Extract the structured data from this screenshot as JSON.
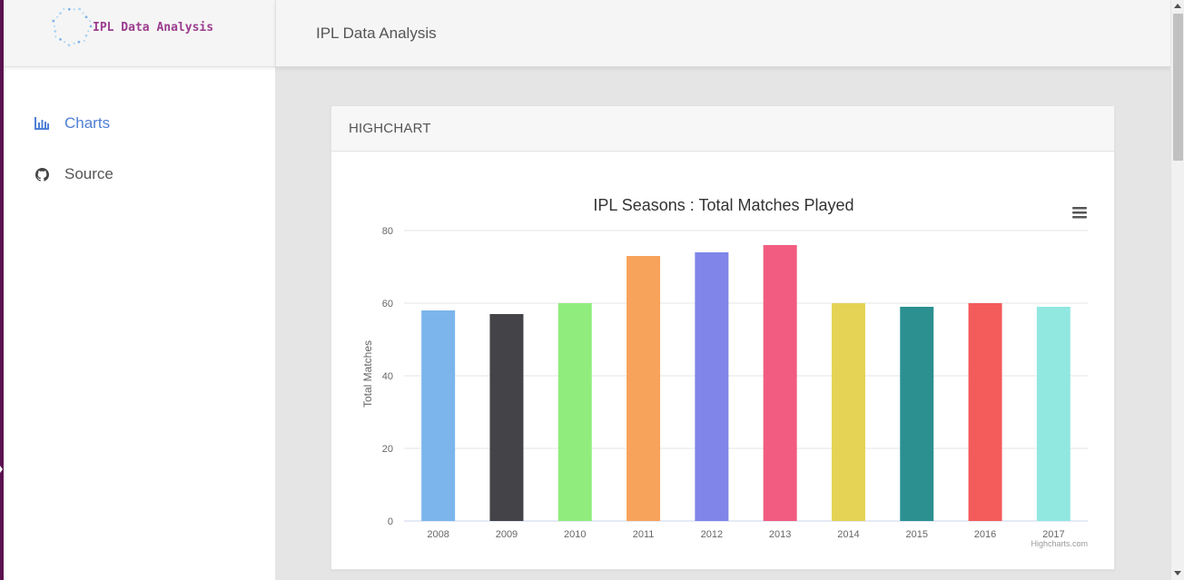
{
  "brand": {
    "name": "IPL Data Analysis",
    "logo_icon": "dotted-circle-logo-icon"
  },
  "topbar": {
    "title": "IPL Data Analysis"
  },
  "sidebar": {
    "items": [
      {
        "label": "Charts",
        "icon": "bar-chart-icon",
        "active": true
      },
      {
        "label": "Source",
        "icon": "github-icon",
        "active": false
      }
    ]
  },
  "card": {
    "title": "HIGHCHART"
  },
  "colors": {
    "accent": "#4f7fd6",
    "brand_text": "#9b3d8f",
    "left_edge": "#5b1150",
    "bars": [
      "#7cb5ec",
      "#434348",
      "#90ed7d",
      "#f7a35c",
      "#8085e9",
      "#f15c80",
      "#e4d354",
      "#2b908f",
      "#f45b5b",
      "#91e8e1"
    ]
  },
  "chart_data": {
    "type": "bar",
    "title": "IPL Seasons : Total Matches Played",
    "ylabel": "Total Matches",
    "xlabel": "",
    "categories": [
      "2008",
      "2009",
      "2010",
      "2011",
      "2012",
      "2013",
      "2014",
      "2015",
      "2016",
      "2017"
    ],
    "values": [
      58,
      57,
      60,
      73,
      74,
      76,
      60,
      59,
      60,
      59
    ],
    "yticks": [
      "0",
      "20",
      "40",
      "60",
      "80"
    ],
    "ylim": [
      0,
      80
    ],
    "grid": true,
    "legend": "none",
    "credits": "Highcharts.com",
    "menu_icon": "hamburger-menu-icon"
  }
}
